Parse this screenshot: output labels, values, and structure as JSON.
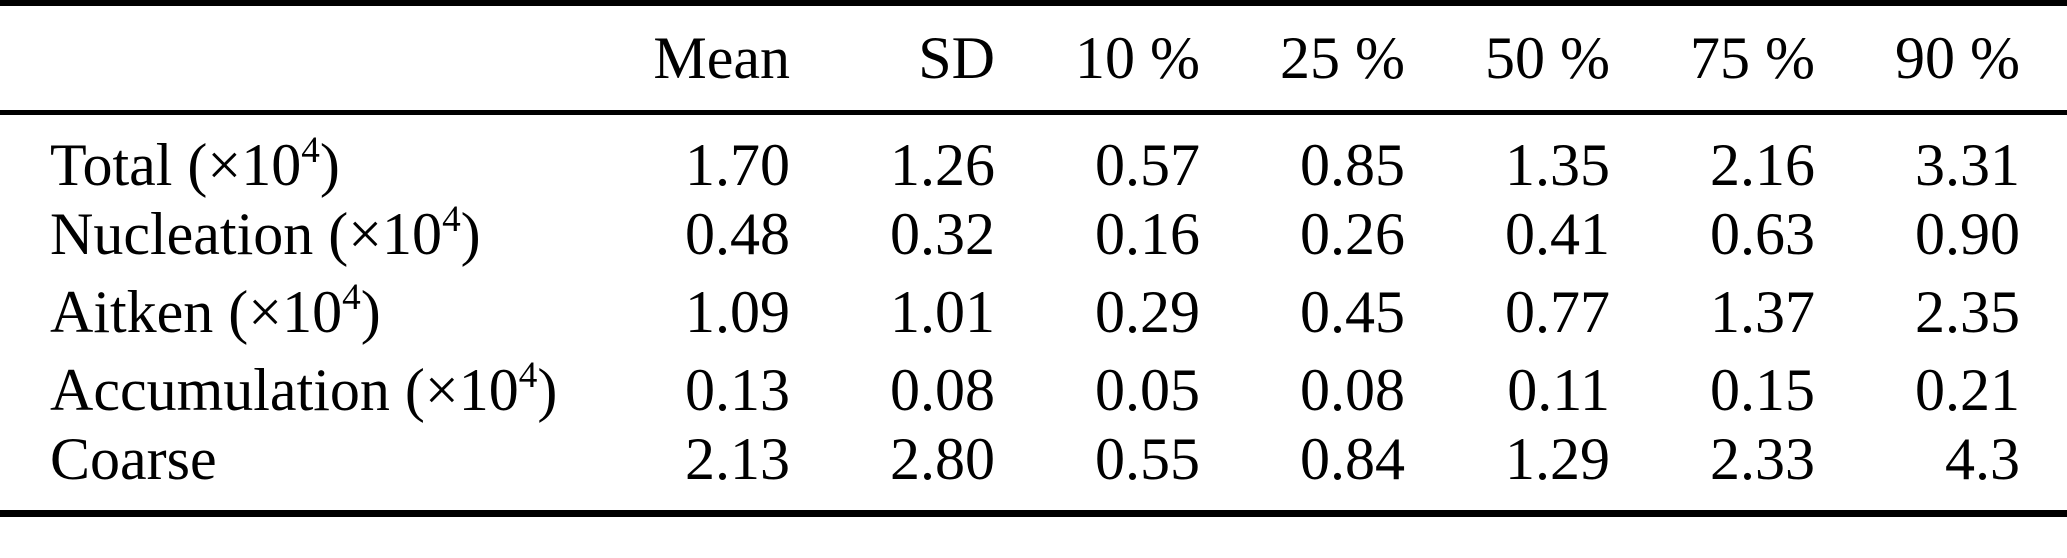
{
  "page": {
    "background": "#ffffff",
    "text_color": "#000000",
    "rule_color": "#000000"
  },
  "table": {
    "columns": [
      {
        "label": ""
      },
      {
        "label": "Mean"
      },
      {
        "label": "SD"
      },
      {
        "label": "10 %"
      },
      {
        "label": "25 %"
      },
      {
        "label": "50 %"
      },
      {
        "label": "75 %"
      },
      {
        "label": "90 %"
      }
    ],
    "rows": [
      {
        "label": {
          "text": "Total (×10",
          "sup": "4",
          "close": ")"
        },
        "values": [
          "1.70",
          "1.26",
          "0.57",
          "0.85",
          "1.35",
          "2.16",
          "3.31"
        ]
      },
      {
        "label": {
          "text": "Nucleation (×10",
          "sup": "4",
          "close": ")"
        },
        "values": [
          "0.48",
          "0.32",
          "0.16",
          "0.26",
          "0.41",
          "0.63",
          "0.90"
        ]
      },
      {
        "label": {
          "text": "Aitken (×10",
          "sup": "4",
          "close": ")"
        },
        "values": [
          "1.09",
          "1.01",
          "0.29",
          "0.45",
          "0.77",
          "1.37",
          "2.35"
        ]
      },
      {
        "label": {
          "text": "Accumulation (×10",
          "sup": "4",
          "close": ")"
        },
        "values": [
          "0.13",
          "0.08",
          "0.05",
          "0.08",
          "0.11",
          "0.15",
          "0.21"
        ]
      },
      {
        "label": {
          "text": "Coarse",
          "sup": "",
          "close": ""
        },
        "values": [
          "2.13",
          "2.80",
          "0.55",
          "0.84",
          "1.29",
          "2.33",
          "4.3"
        ]
      }
    ]
  }
}
